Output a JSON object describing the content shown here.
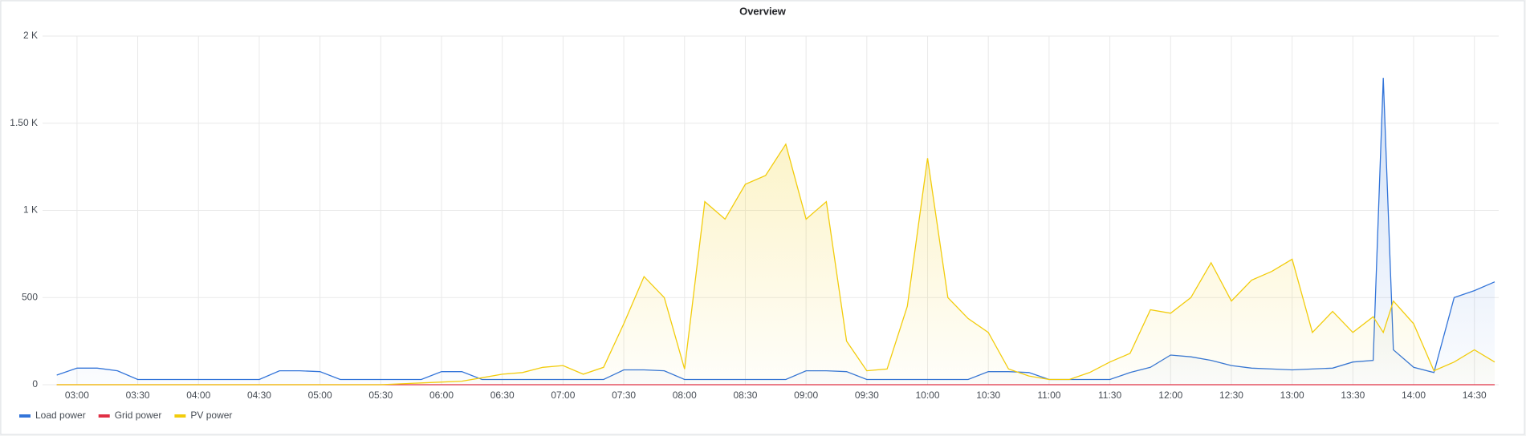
{
  "chart_data": {
    "type": "line",
    "title": "Overview",
    "x": [
      "02:50",
      "03:00",
      "03:10",
      "03:20",
      "03:30",
      "03:40",
      "03:50",
      "04:00",
      "04:10",
      "04:20",
      "04:30",
      "04:40",
      "04:50",
      "05:00",
      "05:10",
      "05:20",
      "05:30",
      "05:40",
      "05:50",
      "06:00",
      "06:10",
      "06:20",
      "06:30",
      "06:40",
      "06:50",
      "07:00",
      "07:10",
      "07:20",
      "07:30",
      "07:40",
      "07:50",
      "08:00",
      "08:10",
      "08:20",
      "08:30",
      "08:40",
      "08:50",
      "09:00",
      "09:10",
      "09:20",
      "09:30",
      "09:40",
      "09:50",
      "10:00",
      "10:10",
      "10:20",
      "10:30",
      "10:40",
      "10:50",
      "11:00",
      "11:10",
      "11:20",
      "11:30",
      "11:40",
      "11:50",
      "12:00",
      "12:10",
      "12:20",
      "12:30",
      "12:40",
      "12:50",
      "13:00",
      "13:10",
      "13:20",
      "13:30",
      "13:40",
      "13:45",
      "13:50",
      "14:00",
      "14:10",
      "14:20",
      "14:30",
      "14:40"
    ],
    "series": [
      {
        "name": "Load power",
        "color": "#3274D9",
        "fill": true,
        "values": [
          55,
          95,
          95,
          80,
          30,
          30,
          30,
          30,
          30,
          30,
          30,
          80,
          80,
          75,
          30,
          30,
          30,
          30,
          30,
          75,
          75,
          30,
          30,
          30,
          30,
          30,
          30,
          30,
          85,
          85,
          80,
          30,
          30,
          30,
          30,
          30,
          30,
          80,
          80,
          75,
          30,
          30,
          30,
          30,
          30,
          30,
          75,
          75,
          70,
          30,
          30,
          30,
          30,
          70,
          100,
          170,
          160,
          140,
          110,
          95,
          90,
          85,
          90,
          95,
          130,
          140,
          1760,
          200,
          100,
          70,
          500,
          540,
          590
        ]
      },
      {
        "name": "Grid power",
        "color": "#E02F44",
        "fill": false,
        "values": [
          0,
          0,
          0,
          0,
          0,
          0,
          0,
          0,
          0,
          0,
          0,
          0,
          0,
          0,
          0,
          0,
          0,
          0,
          0,
          0,
          0,
          0,
          0,
          0,
          0,
          0,
          0,
          0,
          0,
          0,
          0,
          0,
          0,
          0,
          0,
          0,
          0,
          0,
          0,
          0,
          0,
          0,
          0,
          0,
          0,
          0,
          0,
          0,
          0,
          0,
          0,
          0,
          0,
          0,
          0,
          0,
          0,
          0,
          0,
          0,
          0,
          0,
          0,
          0,
          0,
          0,
          0,
          0,
          0,
          0,
          0,
          0,
          0
        ]
      },
      {
        "name": "PV power",
        "color": "#F2CC0C",
        "fill": true,
        "values": [
          0,
          0,
          0,
          0,
          0,
          0,
          0,
          0,
          0,
          0,
          0,
          0,
          0,
          0,
          0,
          0,
          0,
          5,
          10,
          15,
          20,
          40,
          60,
          70,
          100,
          110,
          60,
          100,
          350,
          620,
          500,
          90,
          1050,
          950,
          1150,
          1200,
          1380,
          950,
          1050,
          250,
          80,
          90,
          450,
          1300,
          500,
          380,
          300,
          90,
          50,
          30,
          30,
          70,
          130,
          180,
          430,
          410,
          500,
          700,
          480,
          600,
          650,
          720,
          300,
          420,
          300,
          390,
          300,
          480,
          350,
          80,
          130,
          200,
          130
        ]
      }
    ],
    "xlim": [
      "02:43",
      "14:42"
    ],
    "xticks": [
      "03:00",
      "03:30",
      "04:00",
      "04:30",
      "05:00",
      "05:30",
      "06:00",
      "06:30",
      "07:00",
      "07:30",
      "08:00",
      "08:30",
      "09:00",
      "09:30",
      "10:00",
      "10:30",
      "11:00",
      "11:30",
      "12:00",
      "12:30",
      "13:00",
      "13:30",
      "14:00",
      "14:30"
    ],
    "ylim": [
      0,
      2000
    ],
    "yticks": [
      0,
      500,
      {
        "value": 1000,
        "label": "1 K"
      },
      {
        "value": 1500,
        "label": "1.50 K"
      },
      {
        "value": 2000,
        "label": "2 K"
      }
    ],
    "grid": true
  }
}
